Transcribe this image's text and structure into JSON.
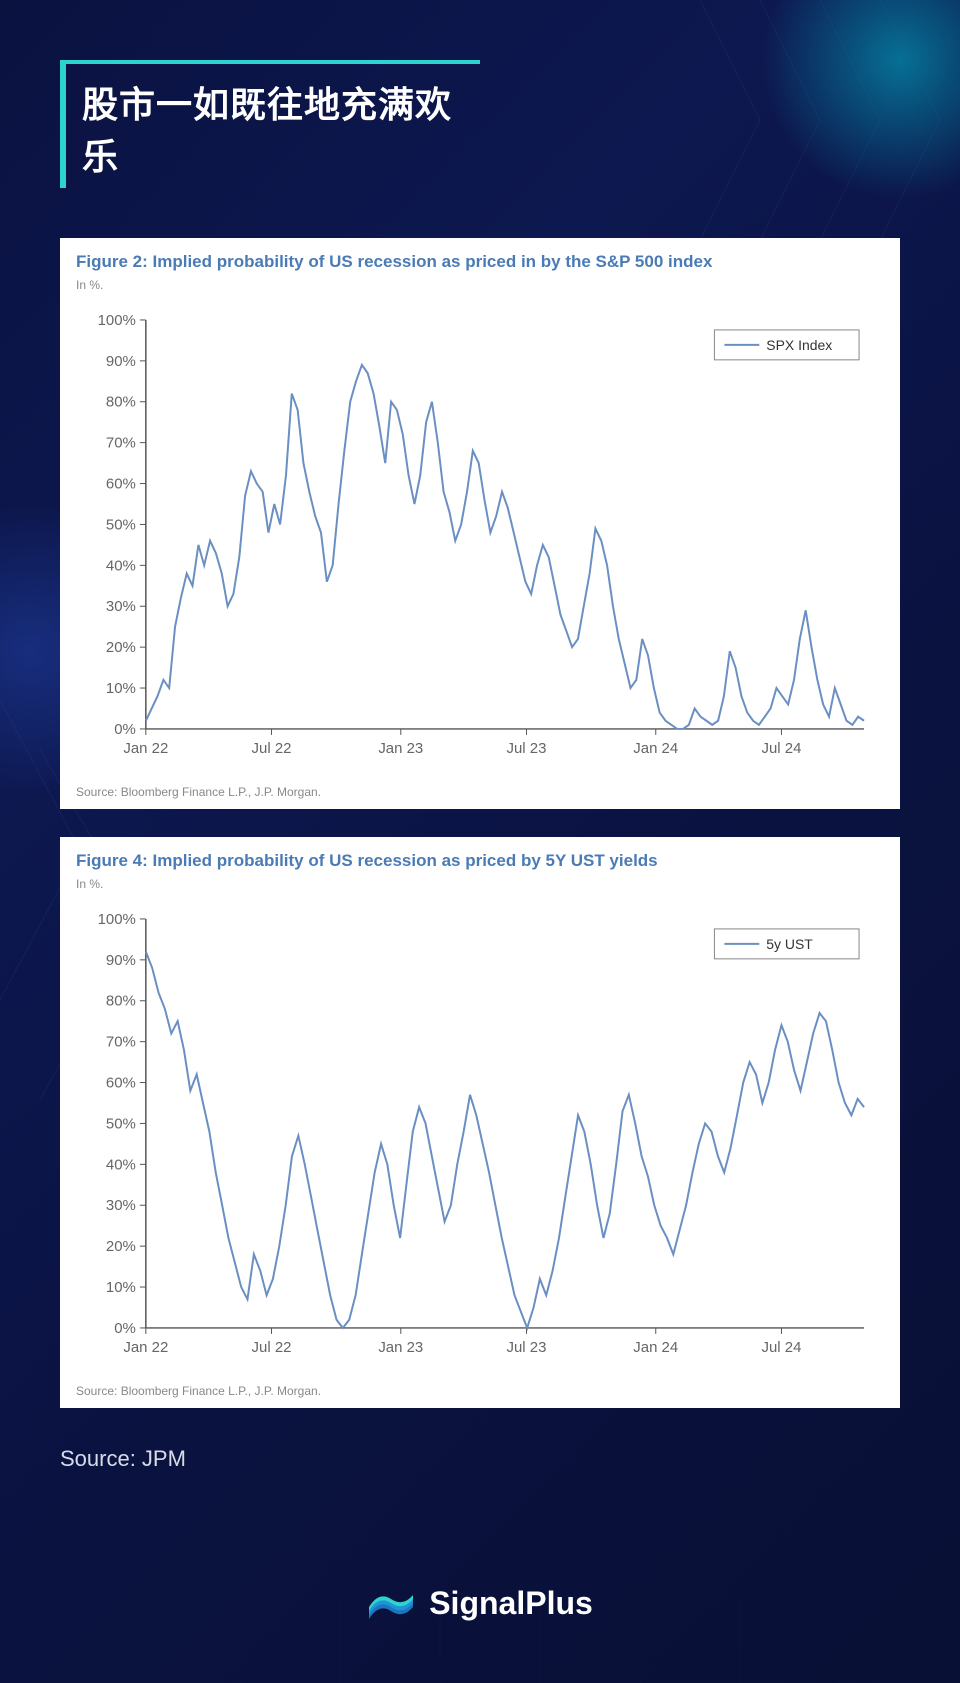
{
  "page": {
    "background_gradient": [
      "#0a1240",
      "#0d1850",
      "#0a1240",
      "#081035"
    ],
    "accent_color": "#2dd4cf",
    "title": "股市一如既往地充满欢乐",
    "title_color": "#ffffff",
    "title_fontsize": 36
  },
  "chart1": {
    "type": "line",
    "title": "Figure 2: Implied probability of US recession as priced in by the S&P 500 index",
    "title_color": "#4a7bb5",
    "title_fontsize": 17,
    "unit_label": "In %.",
    "legend_label": "SPX Index",
    "line_color": "#6a8fc2",
    "axis_color": "#555555",
    "text_color": "#666666",
    "background_color": "#ffffff",
    "ylim": [
      0,
      100
    ],
    "ytick_step": 10,
    "ytick_labels": [
      "0%",
      "10%",
      "20%",
      "30%",
      "40%",
      "50%",
      "60%",
      "70%",
      "80%",
      "90%",
      "100%"
    ],
    "xtick_labels": [
      "Jan 22",
      "Jul 22",
      "Jan 23",
      "Jul 23",
      "Jan 24",
      "Jul 24"
    ],
    "xtick_positions": [
      0,
      0.175,
      0.355,
      0.53,
      0.71,
      0.885
    ],
    "x_range": [
      0,
      1
    ],
    "line_width": 2,
    "values": [
      2,
      5,
      8,
      12,
      10,
      25,
      32,
      38,
      35,
      45,
      40,
      46,
      43,
      38,
      30,
      33,
      42,
      57,
      63,
      60,
      58,
      48,
      55,
      50,
      62,
      82,
      78,
      65,
      58,
      52,
      48,
      36,
      40,
      55,
      68,
      80,
      85,
      89,
      87,
      82,
      74,
      65,
      80,
      78,
      72,
      62,
      55,
      62,
      75,
      80,
      70,
      58,
      53,
      46,
      50,
      58,
      68,
      65,
      56,
      48,
      52,
      58,
      54,
      48,
      42,
      36,
      33,
      40,
      45,
      42,
      35,
      28,
      24,
      20,
      22,
      30,
      38,
      49,
      46,
      40,
      30,
      22,
      16,
      10,
      12,
      22,
      18,
      10,
      4,
      2,
      1,
      0,
      0,
      1,
      5,
      3,
      2,
      1,
      2,
      8,
      19,
      15,
      8,
      4,
      2,
      1,
      3,
      5,
      10,
      8,
      6,
      12,
      22,
      29,
      20,
      12,
      6,
      3,
      10,
      6,
      2,
      1,
      3,
      2
    ],
    "source": "Source: Bloomberg Finance L.P., J.P. Morgan."
  },
  "chart2": {
    "type": "line",
    "title": "Figure 4: Implied probability of US recession as priced by 5Y UST yields",
    "title_color": "#4a7bb5",
    "title_fontsize": 17,
    "unit_label": "In %.",
    "legend_label": "5y UST",
    "line_color": "#6a8fc2",
    "axis_color": "#555555",
    "text_color": "#666666",
    "background_color": "#ffffff",
    "ylim": [
      0,
      100
    ],
    "ytick_step": 10,
    "ytick_labels": [
      "0%",
      "10%",
      "20%",
      "30%",
      "40%",
      "50%",
      "60%",
      "70%",
      "80%",
      "90%",
      "100%"
    ],
    "xtick_labels": [
      "Jan 22",
      "Jul 22",
      "Jan 23",
      "Jul 23",
      "Jan 24",
      "Jul 24"
    ],
    "xtick_positions": [
      0,
      0.175,
      0.355,
      0.53,
      0.71,
      0.885
    ],
    "x_range": [
      0,
      1
    ],
    "line_width": 2,
    "values": [
      92,
      88,
      82,
      78,
      72,
      75,
      68,
      58,
      62,
      55,
      48,
      38,
      30,
      22,
      16,
      10,
      7,
      18,
      14,
      8,
      12,
      20,
      30,
      42,
      47,
      40,
      32,
      24,
      16,
      8,
      2,
      0,
      2,
      8,
      18,
      28,
      38,
      45,
      40,
      30,
      22,
      35,
      48,
      54,
      50,
      42,
      34,
      26,
      30,
      40,
      48,
      57,
      52,
      45,
      38,
      30,
      22,
      15,
      8,
      4,
      0,
      5,
      12,
      8,
      14,
      22,
      32,
      42,
      52,
      48,
      40,
      30,
      22,
      28,
      40,
      53,
      57,
      50,
      42,
      37,
      30,
      25,
      22,
      18,
      24,
      30,
      38,
      45,
      50,
      48,
      42,
      38,
      44,
      52,
      60,
      65,
      62,
      55,
      60,
      68,
      74,
      70,
      63,
      58,
      65,
      72,
      77,
      75,
      68,
      60,
      55,
      52,
      56,
      54
    ],
    "source": "Source: Bloomberg Finance L.P., J.P. Morgan."
  },
  "outer_source": "Source: JPM",
  "footer": {
    "brand": "SignalPlus",
    "logo_colors": [
      "#2dd4cf",
      "#1e88d8"
    ],
    "text_color": "#ffffff"
  }
}
